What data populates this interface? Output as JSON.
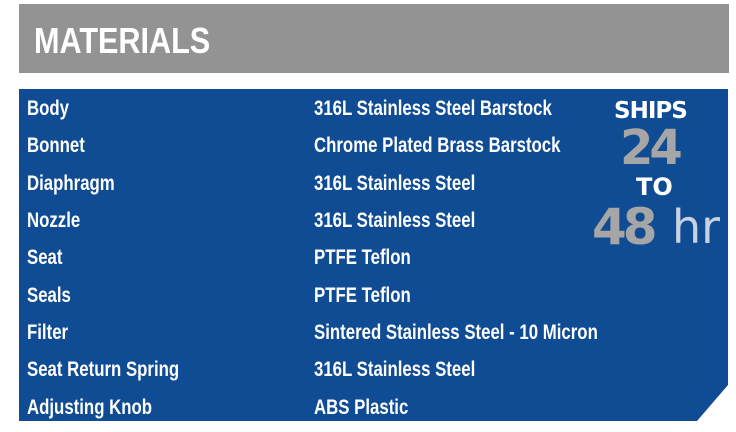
{
  "header": {
    "title": "MATERIALS"
  },
  "colors": {
    "header_bg": "#939393",
    "panel_bg": "#0f4c94",
    "text": "#ffffff",
    "badge_gray": "#a6a6a6"
  },
  "materials": [
    {
      "part": "Body",
      "material": "316L Stainless Steel Barstock"
    },
    {
      "part": "Bonnet",
      "material": "Chrome Plated Brass Barstock"
    },
    {
      "part": "Diaphragm",
      "material": "316L Stainless Steel"
    },
    {
      "part": "Nozzle",
      "material": "316L Stainless Steel"
    },
    {
      "part": "Seat",
      "material": "PTFE Teflon"
    },
    {
      "part": "Seals",
      "material": "PTFE Teflon"
    },
    {
      "part": "Filter",
      "material": "Sintered Stainless Steel - 10 Micron"
    },
    {
      "part": "Seat Return Spring",
      "material": "316L Stainless Steel"
    },
    {
      "part": "Adjusting Knob",
      "material": "ABS Plastic"
    }
  ],
  "badge": {
    "ships": "SHIPS",
    "from": "24",
    "to": "TO",
    "until": "48",
    "unit": "hr"
  }
}
